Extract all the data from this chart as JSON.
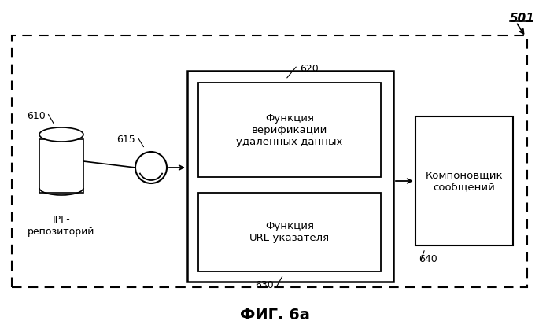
{
  "title": "ФИГ. 6а",
  "label_501": "501",
  "label_610": "610",
  "label_615": "615",
  "label_620": "620",
  "label_630": "630",
  "label_640": "640",
  "text_ipf": "IPF-\nрепозиторий",
  "text_620": "Функция\nверификации\nудаленных данных",
  "text_630": "Функция\nURL-указателя",
  "text_640": "Компоновщик\nсообщений",
  "bg_color": "#ffffff",
  "box_color": "#ffffff",
  "box_edge": "#000000",
  "dashed_border": "#000000"
}
